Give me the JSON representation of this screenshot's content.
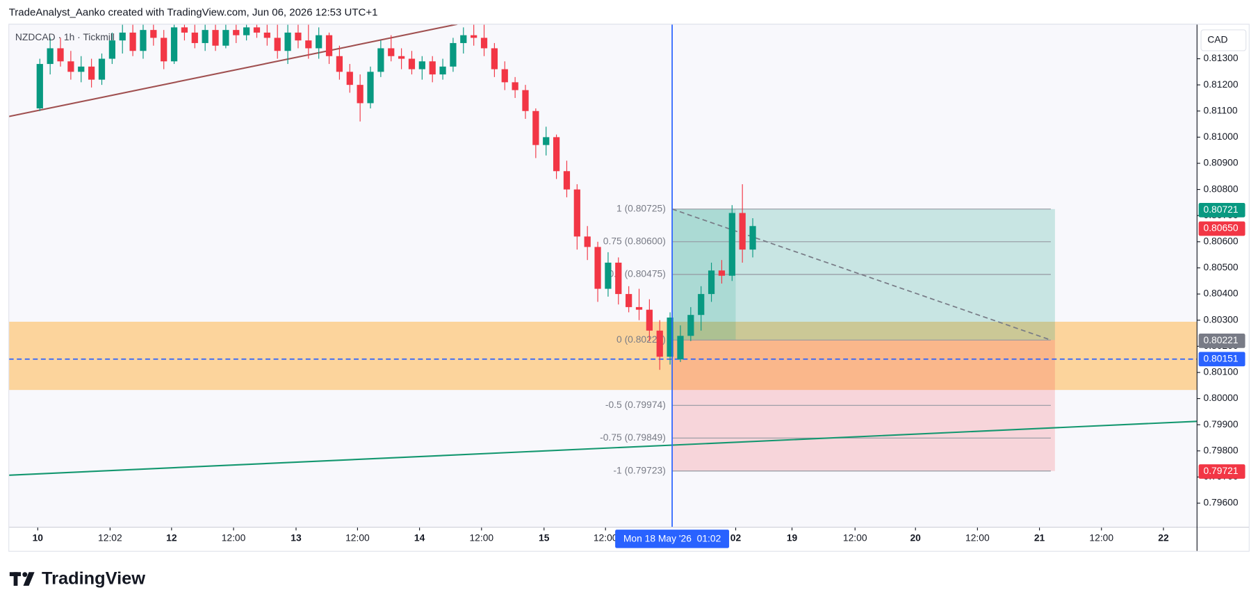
{
  "header": {
    "credit": "TradeAnalyst_Aanko created with TradingView.com, Jun 06, 2026 12:53 UTC+1",
    "logo": "TradingView"
  },
  "chart_data": {
    "type": "candlestick",
    "symbol": "NZDCAD · 1h · Tickmill",
    "currency": "CAD",
    "colors": {
      "up": "#089981",
      "down": "#f23645"
    },
    "x": [
      6,
      8,
      10,
      12,
      14,
      16,
      18,
      20,
      22,
      24,
      26,
      28,
      30,
      32,
      34,
      36,
      38,
      40,
      42,
      44,
      46,
      48,
      50,
      52,
      54,
      56,
      58,
      60,
      62,
      64,
      66,
      68,
      70,
      72,
      74,
      76,
      78,
      80,
      82,
      84,
      86,
      88,
      90,
      92,
      94,
      96,
      98,
      100,
      102,
      104,
      106,
      108,
      110,
      112,
      114,
      116,
      118,
      120,
      122,
      124,
      126,
      128,
      130,
      132,
      134,
      136,
      138,
      140,
      142,
      144
    ],
    "open": [
      0.8111,
      0.8128,
      0.8134,
      0.8129,
      0.8125,
      0.8127,
      0.8122,
      0.813,
      0.8137,
      0.814,
      0.8133,
      0.8141,
      0.8138,
      0.8129,
      0.8142,
      0.814,
      0.8136,
      0.8141,
      0.8135,
      0.8141,
      0.8139,
      0.8142,
      0.814,
      0.8138,
      0.8133,
      0.814,
      0.8137,
      0.8134,
      0.8139,
      0.8131,
      0.8125,
      0.812,
      0.8113,
      0.8125,
      0.8134,
      0.8131,
      0.813,
      0.8126,
      0.8129,
      0.8124,
      0.8127,
      0.8136,
      0.8139,
      0.8138,
      0.8134,
      0.8126,
      0.8121,
      0.8118,
      0.811,
      0.8097,
      0.81,
      0.8087,
      0.808,
      0.8062,
      0.8058,
      0.8042,
      0.8052,
      0.804,
      0.8035,
      0.8034,
      0.8026,
      0.8016,
      0.8015,
      0.8024,
      0.8032,
      0.804,
      0.8049,
      0.8047,
      0.8071,
      0.8057
    ],
    "high": [
      0.813,
      0.8138,
      0.8138,
      0.8133,
      0.8131,
      0.813,
      0.8132,
      0.814,
      0.8143,
      0.8143,
      0.8143,
      0.8143,
      0.8141,
      0.8143,
      0.8143,
      0.8143,
      0.8143,
      0.8143,
      0.8143,
      0.8143,
      0.8143,
      0.8143,
      0.8143,
      0.8143,
      0.8143,
      0.8143,
      0.8143,
      0.8142,
      0.814,
      0.8135,
      0.8128,
      0.8124,
      0.8127,
      0.8137,
      0.8139,
      0.8134,
      0.8133,
      0.8131,
      0.8131,
      0.813,
      0.8138,
      0.8142,
      0.8143,
      0.8143,
      0.8136,
      0.8129,
      0.8123,
      0.812,
      0.8111,
      0.8104,
      0.8101,
      0.8091,
      0.8082,
      0.8066,
      0.806,
      0.8056,
      0.8054,
      0.8043,
      0.8042,
      0.8038,
      0.803,
      0.8033,
      0.8028,
      0.8035,
      0.8043,
      0.8052,
      0.8053,
      0.8074,
      0.8082,
      0.8069
    ],
    "low": [
      0.811,
      0.8124,
      0.8127,
      0.8122,
      0.8121,
      0.8119,
      0.812,
      0.8128,
      0.8132,
      0.8131,
      0.813,
      0.8135,
      0.8126,
      0.8128,
      0.8137,
      0.8134,
      0.8133,
      0.8133,
      0.8134,
      0.8136,
      0.8137,
      0.8138,
      0.8135,
      0.813,
      0.8128,
      0.8134,
      0.813,
      0.813,
      0.8128,
      0.8122,
      0.8117,
      0.8106,
      0.8111,
      0.8123,
      0.8129,
      0.8126,
      0.8124,
      0.8122,
      0.8121,
      0.8122,
      0.8125,
      0.8132,
      0.8135,
      0.8131,
      0.8123,
      0.8118,
      0.8115,
      0.8107,
      0.8092,
      0.8093,
      0.8084,
      0.8077,
      0.8057,
      0.8053,
      0.8037,
      0.8039,
      0.8036,
      0.8033,
      0.803,
      0.8022,
      0.8011,
      0.8013,
      0.8014,
      0.8022,
      0.8026,
      0.8037,
      0.8044,
      0.8045,
      0.8052,
      0.8054
    ],
    "close": [
      0.8128,
      0.8134,
      0.8129,
      0.8125,
      0.8127,
      0.8122,
      0.813,
      0.8137,
      0.814,
      0.8133,
      0.8141,
      0.8138,
      0.8129,
      0.8142,
      0.814,
      0.8136,
      0.8141,
      0.8135,
      0.8141,
      0.8139,
      0.8142,
      0.814,
      0.8138,
      0.8133,
      0.814,
      0.8137,
      0.8134,
      0.8139,
      0.8131,
      0.8125,
      0.812,
      0.8113,
      0.8125,
      0.8134,
      0.8131,
      0.813,
      0.8126,
      0.8129,
      0.8124,
      0.8127,
      0.8136,
      0.8139,
      0.8138,
      0.8134,
      0.8126,
      0.8121,
      0.8118,
      0.811,
      0.8097,
      0.81,
      0.8087,
      0.808,
      0.8062,
      0.8058,
      0.8042,
      0.8052,
      0.804,
      0.8035,
      0.8034,
      0.8026,
      0.8016,
      0.8031,
      0.8024,
      0.8032,
      0.804,
      0.8049,
      0.8047,
      0.8071,
      0.8057,
      0.8066
    ],
    "xlim": [
      0,
      230
    ],
    "ylim": [
      0.79508,
      0.81432
    ],
    "xticks": [
      {
        "value": 5.6,
        "label": "10"
      },
      {
        "value": 19.6,
        "label": "12:02"
      },
      {
        "value": 31.5,
        "label": "12"
      },
      {
        "value": 43.5,
        "label": "12:00"
      },
      {
        "value": 55.6,
        "label": "13"
      },
      {
        "value": 67.5,
        "label": "12:00"
      },
      {
        "value": 79.5,
        "label": "14"
      },
      {
        "value": 91.5,
        "label": "12:00"
      },
      {
        "value": 103.6,
        "label": "15"
      },
      {
        "value": 115.5,
        "label": "12:00"
      },
      {
        "value": 140.7,
        "label": "02"
      },
      {
        "value": 151.6,
        "label": "19"
      },
      {
        "value": 163.8,
        "label": "12:00"
      },
      {
        "value": 175.5,
        "label": "20"
      },
      {
        "value": 187.5,
        "label": "12:00"
      },
      {
        "value": 199.5,
        "label": "21"
      },
      {
        "value": 211.5,
        "label": "12:00"
      },
      {
        "value": 223.5,
        "label": "22"
      }
    ],
    "yticks": [
      {
        "value": 0.813,
        "label": "0.81300"
      },
      {
        "value": 0.812,
        "label": "0.81200"
      },
      {
        "value": 0.811,
        "label": "0.81100"
      },
      {
        "value": 0.81,
        "label": "0.81000"
      },
      {
        "value": 0.809,
        "label": "0.80900"
      },
      {
        "value": 0.808,
        "label": "0.80800"
      },
      {
        "value": 0.807,
        "label": "0.80700"
      },
      {
        "value": 0.806,
        "label": "0.80600"
      },
      {
        "value": 0.805,
        "label": "0.80500"
      },
      {
        "value": 0.804,
        "label": "0.80400"
      },
      {
        "value": 0.803,
        "label": "0.80300"
      },
      {
        "value": 0.802,
        "label": "0.80200"
      },
      {
        "value": 0.801,
        "label": "0.80100"
      },
      {
        "value": 0.8,
        "label": "0.80000"
      },
      {
        "value": 0.799,
        "label": "0.79900"
      },
      {
        "value": 0.798,
        "label": "0.79800"
      },
      {
        "value": 0.797,
        "label": "0.79700"
      },
      {
        "value": 0.796,
        "label": "0.79600"
      }
    ],
    "price_tags": [
      {
        "value": 0.80721,
        "label": "0.80721",
        "color": "#089981"
      },
      {
        "value": 0.8065,
        "label": "0.80650",
        "color": "#f23645"
      },
      {
        "value": 0.80221,
        "label": "0.80221",
        "color": "#787b86"
      },
      {
        "value": 0.80151,
        "label": "0.80151",
        "color": "#2962ff"
      },
      {
        "value": 0.79721,
        "label": "0.79721",
        "color": "#f23645"
      }
    ],
    "zone": [
      0.80033,
      0.80294
    ],
    "hline": 0.80151,
    "crosshair": {
      "x": 128.4,
      "label": "Mon 18 May '26  01:02"
    },
    "trendlines": [
      {
        "x": [
          0,
          86.8
        ],
        "y": [
          0.81079,
          0.81432
        ],
        "color": "#a05050"
      },
      {
        "x": [
          0,
          230
        ],
        "y": [
          0.79707,
          0.79913
        ],
        "color": "#13976f"
      }
    ],
    "fib": {
      "x": [
        128.4,
        201.7
      ],
      "levels": [
        {
          "value": 0.80725,
          "label": "1 (0.80725)"
        },
        {
          "value": 0.806,
          "label": "0.75 (0.80600)"
        },
        {
          "value": 0.80475,
          "label": "0.5 (0.80475)"
        },
        {
          "value": 0.80224,
          "label": "0 (0.80224)"
        },
        {
          "value": 0.79974,
          "label": "-0.5 (0.79974)"
        },
        {
          "value": 0.79849,
          "label": "-0.75 (0.79849)"
        },
        {
          "value": 0.79723,
          "label": "-1 (0.79723)"
        }
      ]
    },
    "position_x": [
      128.4,
      202.5
    ],
    "highlight_x": [
      128.4,
      140.7
    ]
  }
}
